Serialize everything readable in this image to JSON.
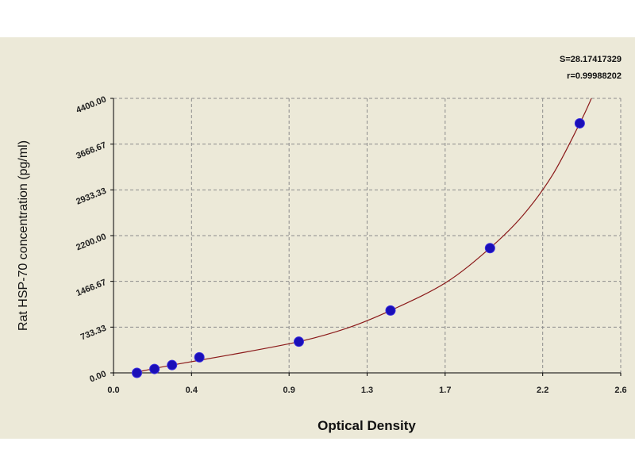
{
  "chart_data": {
    "type": "scatter",
    "xlabel": "Optical Density",
    "ylabel": "Rat HSP-70 concentration (pg/ml)",
    "xlim": [
      0,
      2.6
    ],
    "ylim": [
      0,
      4400
    ],
    "x_ticks": [
      {
        "value": 0.0,
        "label": "0.0"
      },
      {
        "value": 0.4,
        "label": "0.4"
      },
      {
        "value": 0.9,
        "label": "0.9"
      },
      {
        "value": 1.3,
        "label": "1.3"
      },
      {
        "value": 1.7,
        "label": "1.7"
      },
      {
        "value": 2.2,
        "label": "2.2"
      },
      {
        "value": 2.6,
        "label": "2.6"
      }
    ],
    "y_ticks": [
      {
        "value": 0,
        "label": "0.00"
      },
      {
        "value": 733.33,
        "label": "733.33"
      },
      {
        "value": 1466.67,
        "label": "1466.67"
      },
      {
        "value": 2200,
        "label": "2200.00"
      },
      {
        "value": 2933.33,
        "label": "2933.33"
      },
      {
        "value": 3666.67,
        "label": "3666.67"
      },
      {
        "value": 4400,
        "label": "4400.00"
      }
    ],
    "grid": true,
    "points": [
      {
        "x": 0.12,
        "y": 0
      },
      {
        "x": 0.21,
        "y": 62.5
      },
      {
        "x": 0.3,
        "y": 125
      },
      {
        "x": 0.44,
        "y": 250
      },
      {
        "x": 0.95,
        "y": 500
      },
      {
        "x": 1.42,
        "y": 1000
      },
      {
        "x": 1.93,
        "y": 2000
      },
      {
        "x": 2.39,
        "y": 4000
      }
    ],
    "fit_curve": [
      {
        "x": 0.1,
        "y": 0
      },
      {
        "x": 0.3,
        "y": 125
      },
      {
        "x": 0.6,
        "y": 290
      },
      {
        "x": 0.95,
        "y": 500
      },
      {
        "x": 1.2,
        "y": 720
      },
      {
        "x": 1.42,
        "y": 1000
      },
      {
        "x": 1.7,
        "y": 1440
      },
      {
        "x": 1.93,
        "y": 2000
      },
      {
        "x": 2.1,
        "y": 2530
      },
      {
        "x": 2.25,
        "y": 3170
      },
      {
        "x": 2.39,
        "y": 4000
      },
      {
        "x": 2.45,
        "y": 4400
      }
    ],
    "point_color": "#1a0fb8",
    "curve_color": "#8b1a1a",
    "annotations": [
      "S=28.17417329",
      "r=0.99988202"
    ]
  }
}
